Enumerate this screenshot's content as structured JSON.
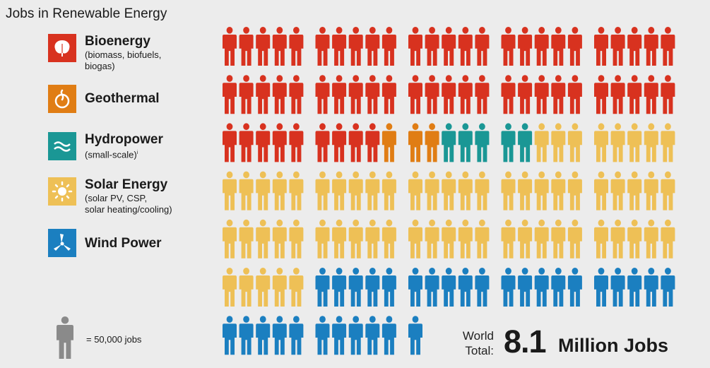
{
  "title": "Jobs in Renewable Energy",
  "legend": [
    {
      "name": "Bioenergy",
      "sub": "(biomass, biofuels,",
      "sub2": "biogas)",
      "color": "#d8321f",
      "icon": "leaf-icon"
    },
    {
      "name": "Geothermal",
      "sub": "",
      "sub2": "",
      "color": "#e07d14",
      "icon": "geothermal-icon"
    },
    {
      "name": "Hydropower",
      "sub": "(small-scale)",
      "sub2": "",
      "note": "i",
      "color": "#1a9795",
      "icon": "wave-icon"
    },
    {
      "name": "Solar Energy",
      "sub": "(solar PV, CSP,",
      "sub2": "solar heating/cooling)",
      "color": "#eec056",
      "icon": "sun-icon"
    },
    {
      "name": "Wind Power",
      "sub": "",
      "sub2": "",
      "color": "#1b7fc0",
      "icon": "wind-turbine-icon"
    }
  ],
  "unit_key": {
    "label": "= 50,000 jobs",
    "color": "#8a8a8a",
    "icon": "person-icon"
  },
  "total": {
    "label_line1": "World",
    "label_line2": "Total:",
    "number": "8.1",
    "unit": "Million Jobs"
  },
  "chart_data": {
    "type": "pictogram",
    "unit": "= 50,000 jobs",
    "categories": [
      "Bioenergy",
      "Geothermal",
      "Hydropower",
      "Solar Energy",
      "Wind Power"
    ],
    "values": [
      59,
      3,
      5,
      63,
      31
    ],
    "icons_per_row": 25,
    "group_size": 5
  }
}
